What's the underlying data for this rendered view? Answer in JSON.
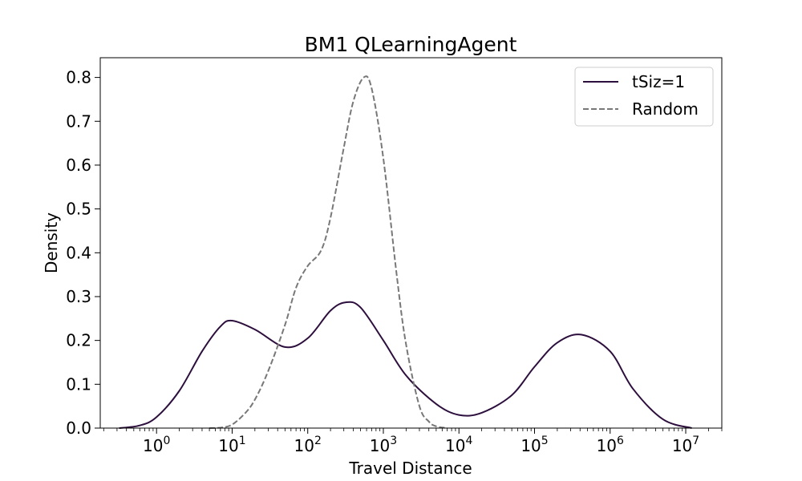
{
  "chart_data": {
    "type": "line",
    "title": "BM1 QLearningAgent",
    "xlabel": "Travel Distance",
    "ylabel": "Density",
    "x_scale": "log",
    "xlim": [
      0.18,
      30000000
    ],
    "ylim": [
      0,
      0.845
    ],
    "y_ticks": [
      "0.0",
      "0.1",
      "0.2",
      "0.3",
      "0.4",
      "0.5",
      "0.6",
      "0.7",
      "0.8"
    ],
    "x_tick_labels": [
      {
        "base": "10",
        "exp": "0"
      },
      {
        "base": "10",
        "exp": "1"
      },
      {
        "base": "10",
        "exp": "2"
      },
      {
        "base": "10",
        "exp": "3"
      },
      {
        "base": "10",
        "exp": "4"
      },
      {
        "base": "10",
        "exp": "5"
      },
      {
        "base": "10",
        "exp": "6"
      },
      {
        "base": "10",
        "exp": "7"
      }
    ],
    "grid": false,
    "legend_position": "top-right",
    "series": [
      {
        "name": "tSiz=1",
        "color": "#2d0f3e",
        "dash": "solid",
        "x": [
          0.32,
          0.6,
          1,
          2,
          4,
          7,
          10,
          20,
          50,
          100,
          200,
          320,
          500,
          1000,
          2000,
          5000,
          10000,
          20000,
          50000,
          100000,
          200000,
          420000,
          1000000,
          2000000,
          5000000,
          12000000
        ],
        "y": [
          0.0,
          0.006,
          0.025,
          0.085,
          0.175,
          0.232,
          0.245,
          0.225,
          0.185,
          0.205,
          0.268,
          0.287,
          0.275,
          0.2,
          0.12,
          0.055,
          0.03,
          0.035,
          0.075,
          0.14,
          0.195,
          0.213,
          0.175,
          0.09,
          0.02,
          0.0
        ]
      },
      {
        "name": "Random",
        "color": "#787878",
        "dash": "dashed",
        "x": [
          5,
          7,
          10,
          15,
          20,
          30,
          50,
          70,
          100,
          150,
          200,
          300,
          400,
          550,
          700,
          1000,
          1500,
          2000,
          3000,
          4000,
          5000,
          7000
        ],
        "y": [
          0.0,
          0.001,
          0.008,
          0.035,
          0.065,
          0.13,
          0.235,
          0.32,
          0.37,
          0.405,
          0.48,
          0.64,
          0.745,
          0.8,
          0.775,
          0.615,
          0.35,
          0.19,
          0.05,
          0.015,
          0.004,
          0.0
        ]
      }
    ]
  }
}
